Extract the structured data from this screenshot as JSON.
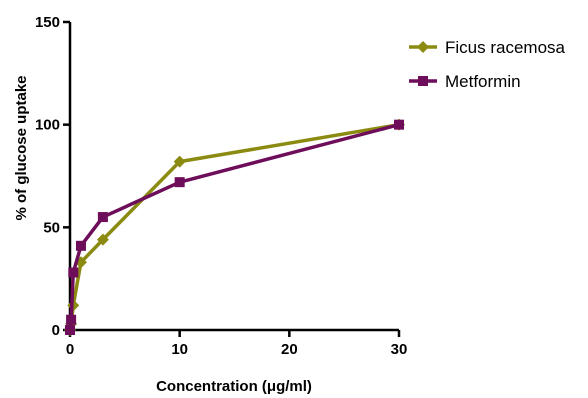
{
  "chart_data": {
    "type": "line",
    "xlabel": "Concentration (μg/ml)",
    "ylabel": "% of glucose uptake",
    "xlim": [
      0,
      30
    ],
    "ylim": [
      0,
      150
    ],
    "x_ticks": [
      "0",
      "10",
      "20",
      "30"
    ],
    "y_ticks": [
      "0",
      "50",
      "100",
      "150"
    ],
    "grid": false,
    "legend_position": "top-right",
    "series": [
      {
        "name": "Ficus racemosa",
        "color": "#8b8b12",
        "marker": "diamond",
        "x": [
          0,
          0.1,
          0.3,
          1,
          3,
          10,
          30
        ],
        "y": [
          0,
          3,
          12,
          33,
          44,
          82,
          100
        ]
      },
      {
        "name": "Metformin",
        "color": "#6e0d5a",
        "marker": "square",
        "x": [
          0,
          0.1,
          0.3,
          1,
          3,
          10,
          30
        ],
        "y": [
          0,
          5,
          28,
          41,
          55,
          72,
          100
        ]
      }
    ]
  }
}
